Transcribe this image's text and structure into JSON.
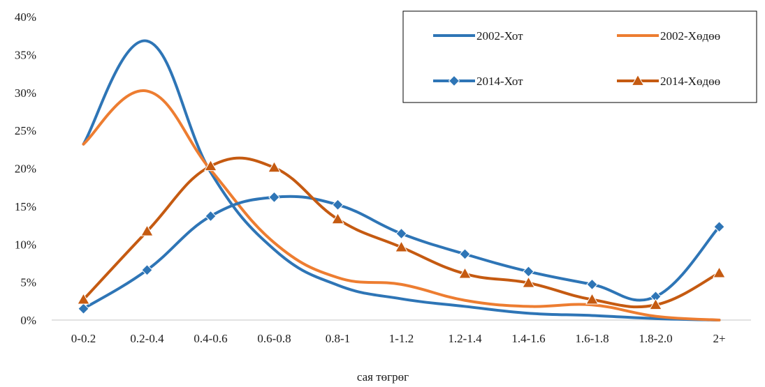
{
  "chart_data": {
    "type": "line",
    "categories": [
      "0-0.2",
      "0.2-0.4",
      "0.4-0.6",
      "0.6-0.8",
      "0.8-1",
      "1-1.2",
      "1.2-1.4",
      "1.4-1.6",
      "1.6-1.8",
      "1.8-2.0",
      "2+"
    ],
    "series": [
      {
        "name": "2002-Хот",
        "color": "#2e75b6",
        "marker": "none",
        "values": [
          23.2,
          36.8,
          19.5,
          9.3,
          4.6,
          2.8,
          1.8,
          0.9,
          0.6,
          0.2,
          0.0
        ]
      },
      {
        "name": "2002-Хөдөө",
        "color": "#ed7d31",
        "marker": "none",
        "values": [
          23.2,
          30.2,
          19.8,
          10.2,
          5.6,
          4.7,
          2.6,
          1.8,
          2.0,
          0.5,
          0.0
        ]
      },
      {
        "name": "2014-Хот",
        "color": "#2e75b6",
        "marker": "diamond",
        "values": [
          1.5,
          6.6,
          13.7,
          16.2,
          15.2,
          11.4,
          8.7,
          6.4,
          4.7,
          3.1,
          12.3
        ]
      },
      {
        "name": "2014-Хөдөө",
        "color": "#c55a11",
        "marker": "triangle",
        "values": [
          2.7,
          11.7,
          20.3,
          20.1,
          13.3,
          9.6,
          6.1,
          4.9,
          2.7,
          2.0,
          6.2
        ]
      }
    ],
    "y_ticks": [
      "0%",
      "5%",
      "10%",
      "15%",
      "20%",
      "25%",
      "30%",
      "35%",
      "40%"
    ],
    "ylim": [
      0,
      40
    ],
    "xlabel": "сая төгрөг",
    "ylabel": "",
    "title": "",
    "legend_position": "top-right",
    "grid": false
  }
}
